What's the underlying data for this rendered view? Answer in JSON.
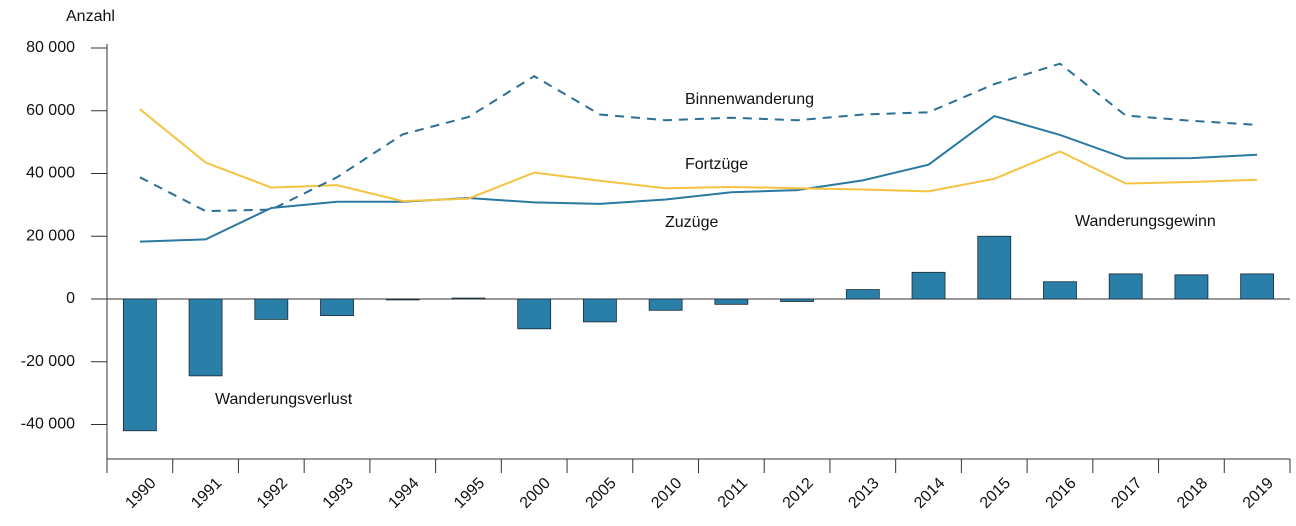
{
  "chart_data": {
    "type": "bar",
    "y_label": "Anzahl",
    "categories": [
      "1990",
      "1991",
      "1992",
      "1993",
      "1994",
      "1995",
      "2000",
      "2005",
      "2010",
      "2011",
      "2012",
      "2013",
      "2014",
      "2015",
      "2016",
      "2017",
      "2018",
      "2019"
    ],
    "series": [
      {
        "name": "Wanderungsgewinn",
        "type": "bar",
        "color": "#2a7fa8",
        "values": [
          -42000,
          -24500,
          -6500,
          -5300,
          -300,
          300,
          -9500,
          -7300,
          -3600,
          -1700,
          -800,
          3000,
          8500,
          20000,
          5500,
          8000,
          7700,
          8000
        ]
      },
      {
        "name": "Zuzüge",
        "type": "line",
        "color": "#2b78a0",
        "values": [
          18300,
          19000,
          29000,
          31000,
          31000,
          32200,
          30800,
          30300,
          31700,
          34000,
          34700,
          37800,
          42800,
          58300,
          52300,
          44800,
          44900,
          46000
        ]
      },
      {
        "name": "Fortzüge",
        "type": "line",
        "color": "#f5c242",
        "values": [
          60500,
          43500,
          35500,
          36300,
          31200,
          32000,
          40300,
          37700,
          35300,
          35700,
          35300,
          34900,
          34300,
          38300,
          47000,
          36800,
          37300,
          38000
        ]
      },
      {
        "name": "Binnenwanderung",
        "type": "line",
        "style": "dashed",
        "color": "#2b6f96",
        "values": [
          38800,
          28000,
          28500,
          38800,
          52500,
          58000,
          71000,
          58800,
          57000,
          57800,
          57000,
          58800,
          59500,
          68500,
          75000,
          58500,
          56800,
          55500
        ]
      }
    ],
    "annotations": [
      "Wanderungsverlust"
    ],
    "ylim": [
      -51000,
      80000
    ],
    "yticks": [
      {
        "value": -40000,
        "label": "-40 000"
      },
      {
        "value": -20000,
        "label": "-20 000"
      },
      0,
      {
        "value": 20000,
        "label": "20 000"
      },
      {
        "value": 40000,
        "label": "40 000"
      },
      {
        "value": 60000,
        "label": "60 000"
      },
      {
        "value": 80000,
        "label": "80 000"
      }
    ]
  }
}
